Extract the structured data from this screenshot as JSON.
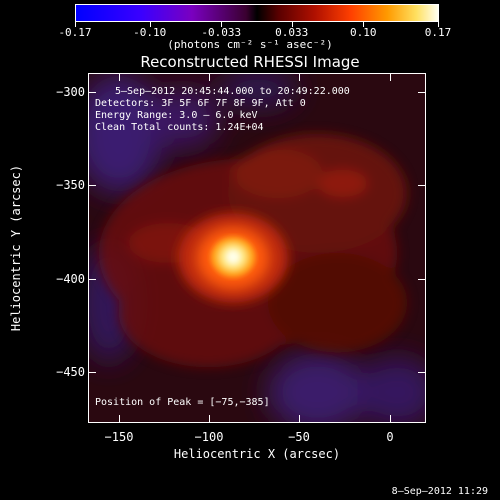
{
  "colorbar": {
    "tick_labels": [
      "-0.17",
      "-0.10",
      "-0.033",
      "0.033",
      "0.10",
      "0.17"
    ],
    "tick_values": [
      -0.17,
      -0.1,
      -0.033,
      0.033,
      0.1,
      0.17
    ],
    "range": [
      -0.17,
      0.17
    ],
    "units": "(photons cm⁻² s⁻¹ asec⁻²)"
  },
  "chart_data": {
    "type": "heatmap",
    "title": "Reconstructed RHESSI Image",
    "xlabel": "Heliocentric X (arcsec)",
    "ylabel": "Heliocentric Y (arcsec)",
    "xlim": [
      -167,
      20
    ],
    "ylim": [
      -477,
      -290
    ],
    "x_ticks": [
      -150,
      -100,
      -50,
      0
    ],
    "x_tick_labels": [
      "−150",
      "−100",
      "−50",
      "0"
    ],
    "y_ticks": [
      -300,
      -350,
      -400,
      -450
    ],
    "y_tick_labels": [
      "−300",
      "−350",
      "−400",
      "−450"
    ],
    "peak_position": [
      -75,
      -385
    ],
    "colormap": [
      "#0000ff",
      "#7a00c0",
      "#000000",
      "#b01000",
      "#ff9a00",
      "#fffff0"
    ]
  },
  "annotations": {
    "time_range": "5–Sep–2012 20:45:44.000 to 20:49:22.000",
    "detectors": "Detectors: 3F 5F 6F 7F 8F 9F, Att 0",
    "energy_range": "Energy Range: 3.0 – 6.0 keV",
    "clean_counts": "Clean    Total counts: 1.24E+04",
    "peak_text": "Position of Peak = [−75,−385]"
  },
  "timestamp": "8–Sep–2012 11:29"
}
